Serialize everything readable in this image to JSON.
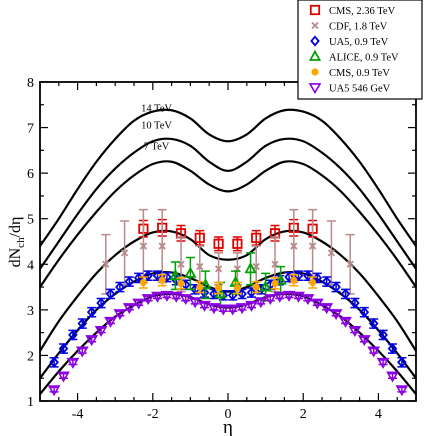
{
  "chart_data": {
    "type": "scatter",
    "title": "",
    "xlabel": "η",
    "ylabel_main": "dN",
    "ylabel_sub": "ch",
    "ylabel_tail": "/dη",
    "xlim": [
      -5,
      5
    ],
    "ylim": [
      1,
      8
    ],
    "grid": false,
    "legend_position": "top-right",
    "x_ticks": [
      {
        "value": -4,
        "label": "-4"
      },
      {
        "value": -2,
        "label": "-2"
      },
      {
        "value": 0,
        "label": "0"
      },
      {
        "value": 2,
        "label": "2"
      },
      {
        "value": 4,
        "label": "4"
      }
    ],
    "y_ticks": [
      {
        "value": 1,
        "label": "1"
      },
      {
        "value": 2,
        "label": "2"
      },
      {
        "value": 3,
        "label": "3"
      },
      {
        "value": 4,
        "label": "4"
      },
      {
        "value": 5,
        "label": "5"
      },
      {
        "value": 6,
        "label": "6"
      },
      {
        "value": 7,
        "label": "7"
      },
      {
        "value": 8,
        "label": "8"
      }
    ],
    "curve_labels": [
      {
        "text": "14 TeV",
        "x": -1.9,
        "y": 7.35
      },
      {
        "text": "10 TeV",
        "x": -1.9,
        "y": 6.98
      },
      {
        "text": "7 TeV",
        "x": -1.9,
        "y": 6.52
      }
    ],
    "curves": [
      {
        "x": [
          -5,
          -4.5,
          -4,
          -3.5,
          -3,
          -2.5,
          -2,
          -1.5,
          -1,
          -0.5,
          0,
          0.5,
          1,
          1.5,
          2,
          2.5,
          3,
          3.5,
          4,
          4.5,
          5
        ],
        "y": [
          4.4,
          5.0,
          5.65,
          6.25,
          6.75,
          7.15,
          7.35,
          7.38,
          7.2,
          6.85,
          6.7,
          6.85,
          7.2,
          7.38,
          7.35,
          7.15,
          6.75,
          6.25,
          5.65,
          5.0,
          4.4
        ]
      },
      {
        "x": [
          -5,
          -4.5,
          -4,
          -3.5,
          -3,
          -2.5,
          -2,
          -1.5,
          -1,
          -0.5,
          0,
          0.5,
          1,
          1.5,
          2,
          2.5,
          3,
          3.5,
          4,
          4.5,
          5
        ],
        "y": [
          3.9,
          4.5,
          5.1,
          5.65,
          6.1,
          6.45,
          6.7,
          6.75,
          6.6,
          6.25,
          6.05,
          6.25,
          6.6,
          6.75,
          6.7,
          6.45,
          6.1,
          5.65,
          5.1,
          4.5,
          3.9
        ]
      },
      {
        "x": [
          -5,
          -4.5,
          -4,
          -3.5,
          -3,
          -2.5,
          -2,
          -1.5,
          -1,
          -0.5,
          0,
          0.5,
          1,
          1.5,
          2,
          2.5,
          3,
          3.5,
          4,
          4.5,
          5
        ],
        "y": [
          3.5,
          4.1,
          4.65,
          5.15,
          5.6,
          5.95,
          6.2,
          6.25,
          6.05,
          5.75,
          5.6,
          5.75,
          6.05,
          6.25,
          6.2,
          5.95,
          5.6,
          5.15,
          4.65,
          4.1,
          3.5
        ]
      },
      {
        "x": [
          -5,
          -4.5,
          -4,
          -3.5,
          -3,
          -2.5,
          -2,
          -1.5,
          -1,
          -0.5,
          0,
          0.5,
          1,
          1.5,
          2,
          2.5,
          3,
          3.5,
          4,
          4.5,
          5
        ],
        "y": [
          2.1,
          2.75,
          3.3,
          3.8,
          4.2,
          4.5,
          4.7,
          4.72,
          4.55,
          4.2,
          4.1,
          4.2,
          4.55,
          4.72,
          4.7,
          4.5,
          4.2,
          3.8,
          3.3,
          2.75,
          2.1
        ]
      },
      {
        "x": [
          -5,
          -4.5,
          -4,
          -3.5,
          -3,
          -2.5,
          -2,
          -1.5,
          -1,
          -0.5,
          0,
          0.5,
          1,
          1.5,
          2,
          2.5,
          3,
          3.5,
          4,
          4.5,
          5
        ],
        "y": [
          1.5,
          2.05,
          2.55,
          3.0,
          3.35,
          3.62,
          3.8,
          3.82,
          3.7,
          3.5,
          3.4,
          3.5,
          3.7,
          3.82,
          3.8,
          3.62,
          3.35,
          3.0,
          2.55,
          2.05,
          1.5
        ]
      },
      {
        "x": [
          -5,
          -4.5,
          -4,
          -3.5,
          -3,
          -2.5,
          -2,
          -1.5,
          -1,
          -0.5,
          0,
          0.5,
          1,
          1.5,
          2,
          2.5,
          3,
          3.5,
          4,
          4.5,
          5
        ],
        "y": [
          1.15,
          1.65,
          2.1,
          2.5,
          2.85,
          3.1,
          3.3,
          3.35,
          3.28,
          3.12,
          3.05,
          3.12,
          3.28,
          3.35,
          3.3,
          3.1,
          2.85,
          2.5,
          2.1,
          1.65,
          1.15
        ]
      }
    ],
    "series": [
      {
        "name": "CMS,  2.36 TeV",
        "marker": "square-open",
        "color": "#e00000",
        "x": [
          -2.25,
          -1.75,
          -1.25,
          -0.75,
          -0.25,
          0.25,
          0.75,
          1.25,
          1.75,
          2.25
        ],
        "y": [
          4.78,
          4.8,
          4.68,
          4.58,
          4.45,
          4.45,
          4.58,
          4.68,
          4.8,
          4.78
        ],
        "err": [
          0.18,
          0.18,
          0.17,
          0.16,
          0.15,
          0.15,
          0.16,
          0.17,
          0.18,
          0.18
        ]
      },
      {
        "name": "CDF, 1.8 TeV",
        "marker": "x",
        "color": "#b88a8a",
        "x": [
          -3.25,
          -2.75,
          -2.25,
          -1.75,
          -1.25,
          -0.75,
          -0.25,
          0.25,
          0.75,
          1.25,
          1.75,
          2.25,
          2.75,
          3.25
        ],
        "y": [
          4.0,
          4.25,
          4.4,
          4.4,
          4.0,
          3.95,
          3.9,
          3.9,
          3.95,
          4.0,
          4.4,
          4.4,
          4.25,
          4.0
        ],
        "err": [
          0.65,
          0.7,
          0.8,
          0.8,
          0.6,
          0.45,
          0.35,
          0.35,
          0.45,
          0.6,
          0.8,
          0.8,
          0.7,
          0.65
        ]
      },
      {
        "name": "UA5, 0.9 TeV",
        "marker": "diamond",
        "color": "#0000e0",
        "x": [
          -4.625,
          -4.375,
          -4.125,
          -3.875,
          -3.625,
          -3.375,
          -3.125,
          -2.875,
          -2.625,
          -2.375,
          -2.125,
          -1.875,
          -1.625,
          -1.375,
          -1.125,
          -0.875,
          -0.625,
          -0.375,
          -0.125,
          0.125,
          0.375,
          0.625,
          0.875,
          1.125,
          1.375,
          1.625,
          1.875,
          2.125,
          2.375,
          2.625,
          2.875,
          3.125,
          3.375,
          3.625,
          3.875,
          4.125,
          4.375,
          4.625
        ],
        "y": [
          1.85,
          2.15,
          2.45,
          2.7,
          2.95,
          3.15,
          3.35,
          3.5,
          3.62,
          3.7,
          3.75,
          3.75,
          3.72,
          3.65,
          3.55,
          3.45,
          3.38,
          3.35,
          3.32,
          3.32,
          3.35,
          3.38,
          3.45,
          3.55,
          3.65,
          3.72,
          3.75,
          3.75,
          3.7,
          3.62,
          3.5,
          3.35,
          3.15,
          2.95,
          2.7,
          2.45,
          2.15,
          1.85
        ],
        "err": [
          0.1,
          0.1,
          0.1,
          0.1,
          0.1,
          0.1,
          0.1,
          0.1,
          0.1,
          0.1,
          0.1,
          0.1,
          0.1,
          0.1,
          0.1,
          0.1,
          0.1,
          0.1,
          0.1,
          0.1,
          0.1,
          0.1,
          0.1,
          0.1,
          0.1,
          0.1,
          0.1,
          0.1,
          0.1,
          0.1,
          0.1,
          0.1,
          0.1,
          0.1,
          0.1,
          0.1,
          0.1,
          0.1
        ]
      },
      {
        "name": "ALICE, 0.9 TeV",
        "marker": "triangle-up-open",
        "color": "#00a000",
        "x": [
          -1.4,
          -1.0,
          -0.6,
          -0.2,
          0.2,
          0.6,
          1.0,
          1.4
        ],
        "y": [
          3.75,
          3.8,
          3.55,
          3.35,
          3.6,
          3.9,
          3.5,
          3.65
        ],
        "err": [
          0.3,
          0.35,
          0.3,
          0.25,
          0.25,
          0.35,
          0.3,
          0.3
        ]
      },
      {
        "name": "CMS, 0.9 TeV",
        "marker": "circle",
        "color": "#ffa500",
        "x": [
          -2.25,
          -1.75,
          -1.25,
          -0.75,
          -0.25,
          0.25,
          0.75,
          1.25,
          1.75,
          2.25
        ],
        "y": [
          3.6,
          3.65,
          3.58,
          3.5,
          3.48,
          3.48,
          3.5,
          3.58,
          3.65,
          3.6
        ],
        "err": [
          0.12,
          0.12,
          0.12,
          0.12,
          0.12,
          0.12,
          0.12,
          0.12,
          0.12,
          0.12
        ]
      },
      {
        "name": "UA5 546 GeV",
        "marker": "triangle-down-open",
        "color": "#8b00e0",
        "x": [
          -4.625,
          -4.375,
          -4.125,
          -3.875,
          -3.625,
          -3.375,
          -3.125,
          -2.875,
          -2.625,
          -2.375,
          -2.125,
          -1.875,
          -1.625,
          -1.375,
          -1.125,
          -0.875,
          -0.625,
          -0.375,
          -0.125,
          0.125,
          0.375,
          0.625,
          0.875,
          1.125,
          1.375,
          1.625,
          1.875,
          2.125,
          2.375,
          2.625,
          2.875,
          3.125,
          3.375,
          3.625,
          3.875,
          4.125,
          4.375,
          4.625
        ],
        "y": [
          1.25,
          1.55,
          1.85,
          2.1,
          2.35,
          2.55,
          2.75,
          2.92,
          3.05,
          3.15,
          3.25,
          3.3,
          3.32,
          3.3,
          3.25,
          3.18,
          3.1,
          3.05,
          3.02,
          3.02,
          3.05,
          3.1,
          3.18,
          3.25,
          3.3,
          3.32,
          3.3,
          3.25,
          3.15,
          3.05,
          2.92,
          2.75,
          2.55,
          2.35,
          2.1,
          1.85,
          1.55,
          1.25
        ],
        "err": [
          0.05,
          0.05,
          0.05,
          0.05,
          0.05,
          0.05,
          0.05,
          0.05,
          0.05,
          0.05,
          0.05,
          0.05,
          0.05,
          0.05,
          0.05,
          0.05,
          0.05,
          0.05,
          0.05,
          0.05,
          0.05,
          0.05,
          0.05,
          0.05,
          0.05,
          0.05,
          0.05,
          0.05,
          0.05,
          0.05,
          0.05,
          0.05,
          0.05,
          0.05,
          0.05,
          0.05,
          0.05,
          0.05
        ]
      }
    ]
  }
}
